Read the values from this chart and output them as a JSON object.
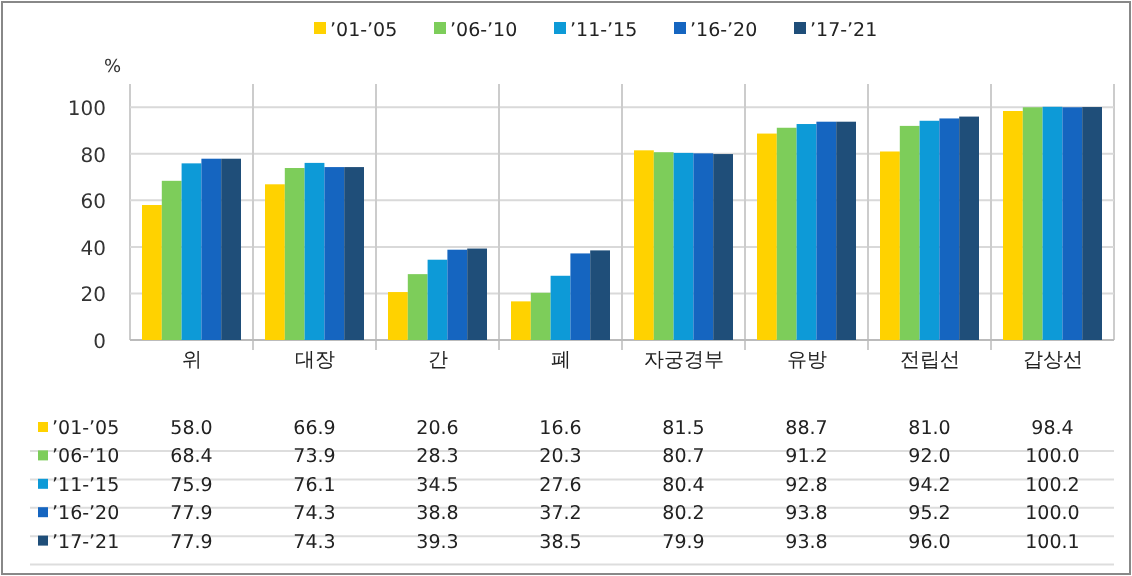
{
  "chart_data": {
    "type": "bar",
    "ylabel": "%",
    "categories": [
      "위",
      "대장",
      "간",
      "폐",
      "자궁경부",
      "유방",
      "전립선",
      "갑상선"
    ],
    "series": [
      {
        "name": "’01-’05",
        "color": "#ffd200",
        "values": [
          58.0,
          66.9,
          20.6,
          16.6,
          81.5,
          88.7,
          81.0,
          98.4
        ],
        "value_labels": [
          "58.0",
          "66.9",
          "20.6",
          "16.6",
          "81.5",
          "88.7",
          "81.0",
          "98.4"
        ]
      },
      {
        "name": "’06-’10",
        "color": "#7dcd5a",
        "values": [
          68.4,
          73.9,
          28.3,
          20.3,
          80.7,
          91.2,
          92.0,
          100.0
        ],
        "value_labels": [
          "68.4",
          "73.9",
          "28.3",
          "20.3",
          "80.7",
          "91.2",
          "92.0",
          "100.0"
        ]
      },
      {
        "name": "’11-’15",
        "color": "#0d9ad7",
        "values": [
          75.9,
          76.1,
          34.5,
          27.6,
          80.4,
          92.8,
          94.2,
          100.2
        ],
        "value_labels": [
          "75.9",
          "76.1",
          "34.5",
          "27.6",
          "80.4",
          "92.8",
          "94.2",
          "100.2"
        ]
      },
      {
        "name": "’16-’20",
        "color": "#1565c0",
        "values": [
          77.9,
          74.3,
          38.8,
          37.2,
          80.2,
          93.8,
          95.2,
          100.0
        ],
        "value_labels": [
          "77.9",
          "74.3",
          "38.8",
          "37.2",
          "80.2",
          "93.8",
          "95.2",
          "100.0"
        ]
      },
      {
        "name": "’17-’21",
        "color": "#1f4e79",
        "values": [
          77.9,
          74.3,
          39.3,
          38.5,
          79.9,
          93.8,
          96.0,
          100.1
        ],
        "value_labels": [
          "77.9",
          "74.3",
          "39.3",
          "38.5",
          "79.9",
          "93.8",
          "96.0",
          "100.1"
        ]
      }
    ],
    "ylim": [
      0,
      110
    ],
    "yticks": [
      0,
      20,
      40,
      60,
      80,
      100
    ],
    "grid": "y",
    "legend": "top"
  }
}
